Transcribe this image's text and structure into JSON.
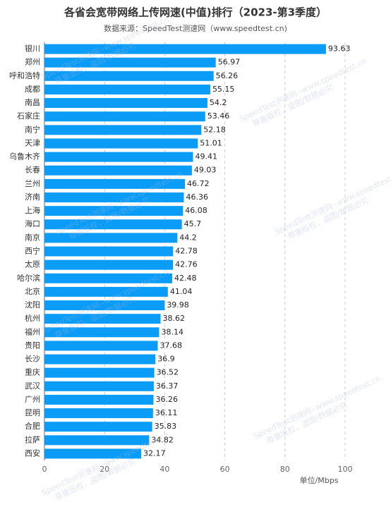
{
  "chart_data": {
    "type": "bar",
    "orientation": "horizontal",
    "title": "各省会宽带网络上传网速(中值)排行（2023-第3季度）",
    "subtitle": "数据来源：SpeedTest测速网（www.speedtest.cn)",
    "x_axis_label": "单位/Mbps",
    "watermark": [
      "SpeedTest测速网--www.speedtest.cn",
      "尊重版权，盗图/数据必究"
    ],
    "categories": [
      "银川",
      "郑州",
      "呼和浩特",
      "成都",
      "南昌",
      "石家庄",
      "南宁",
      "天津",
      "乌鲁木齐",
      "长春",
      "兰州",
      "济南",
      "上海",
      "海口",
      "南京",
      "西宁",
      "太原",
      "哈尔滨",
      "北京",
      "沈阳",
      "杭州",
      "福州",
      "贵阳",
      "长沙",
      "重庆",
      "武汉",
      "广州",
      "昆明",
      "合肥",
      "拉萨",
      "西安"
    ],
    "values": [
      93.63,
      56.97,
      56.26,
      55.15,
      54.2,
      53.46,
      52.18,
      51.01,
      49.41,
      49.03,
      46.72,
      46.36,
      46.08,
      45.7,
      44.2,
      42.78,
      42.76,
      42.48,
      41.04,
      39.98,
      38.62,
      38.14,
      37.68,
      36.9,
      36.52,
      36.37,
      36.26,
      36.11,
      35.83,
      34.82,
      32.17
    ],
    "color": "#0b9cf8",
    "xlim": [
      0,
      100
    ],
    "xticks": [
      0,
      20,
      40,
      60,
      80,
      100
    ],
    "grid": true
  }
}
